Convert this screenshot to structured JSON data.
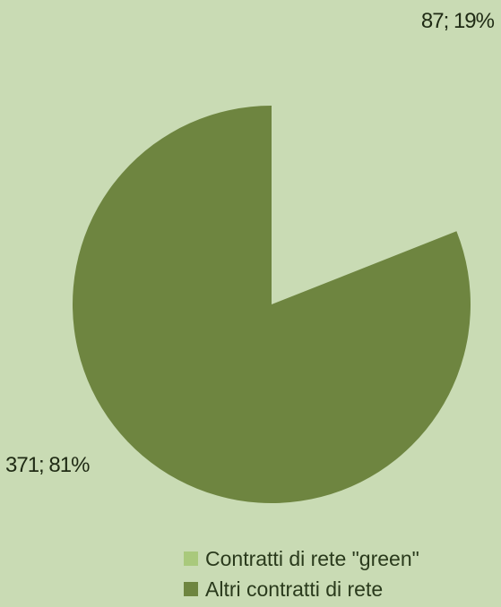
{
  "chart_data": {
    "type": "pie",
    "slices": [
      {
        "name": "Contratti di rete \"green\"",
        "value": 87,
        "percent": "19%",
        "label": "87; 19%",
        "color": "#a9c97c",
        "exploded": false
      },
      {
        "name": "Altri contratti di rete",
        "value": 371,
        "percent": "81%",
        "label": "371; 81%",
        "color": "#6e8540",
        "exploded": false
      }
    ],
    "legend": {
      "placement": "bottom-right",
      "items": [
        "Contratti di rete \"green\"",
        "Altri contratti di rete"
      ]
    },
    "background": "#c9dbb4",
    "title": ""
  }
}
